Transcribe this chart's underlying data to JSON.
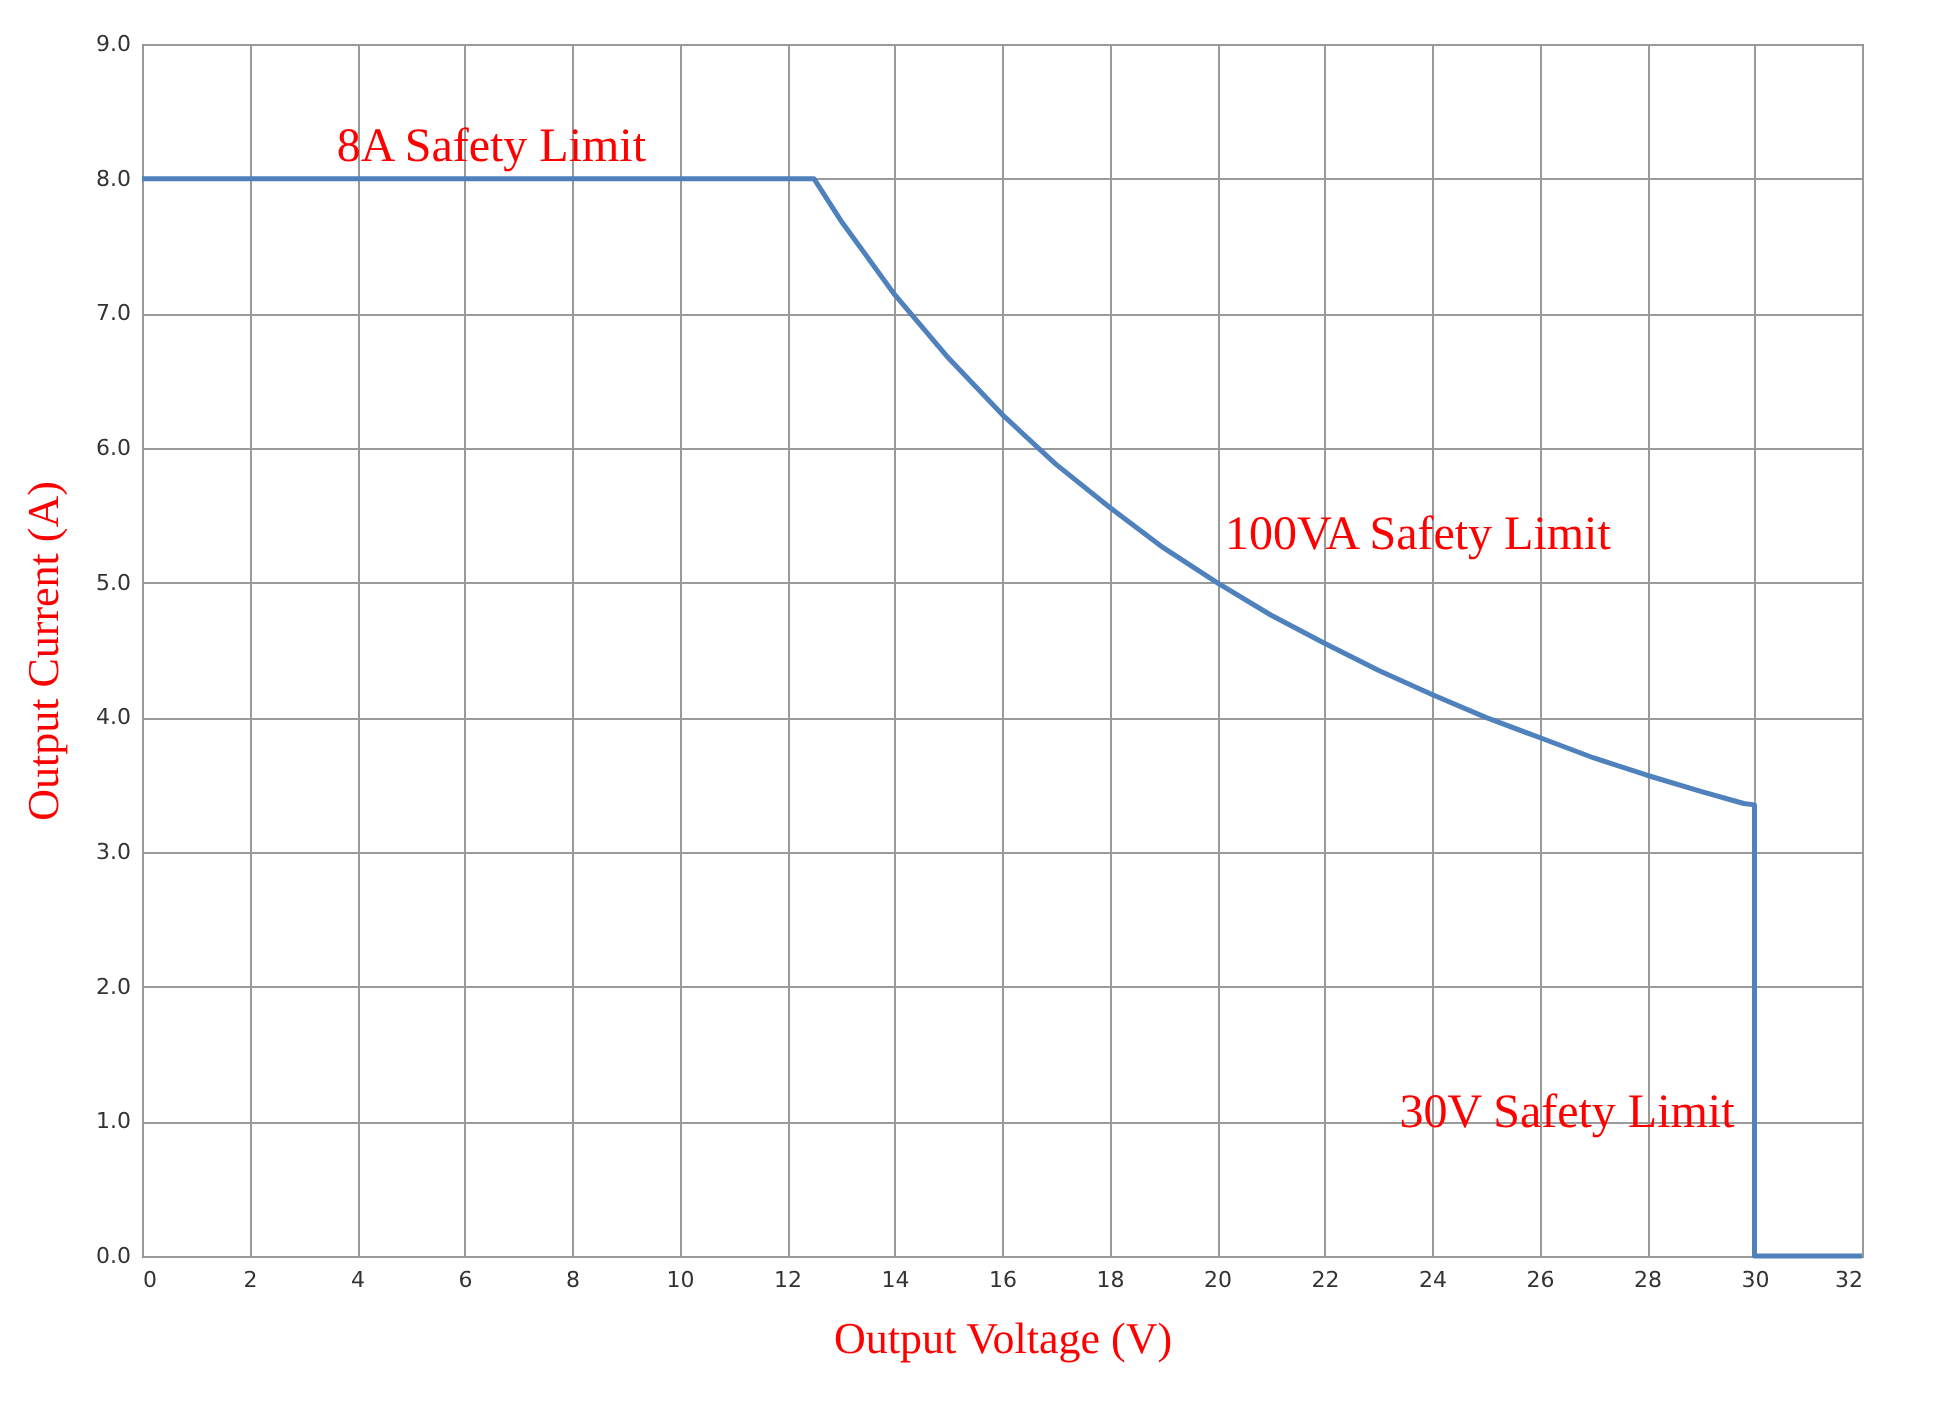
{
  "chart_data": {
    "type": "line",
    "xlabel": "Output Voltage (V)",
    "ylabel": "Output Current (A)",
    "series": [
      {
        "color": "#4f81bd",
        "x": [
          0,
          12.5,
          13,
          14,
          15,
          16,
          17,
          18,
          19,
          20,
          21,
          22,
          23,
          24,
          25,
          26,
          27,
          28,
          29,
          29.8,
          30,
          30,
          30.2,
          32
        ],
        "values": [
          8.0,
          8.0,
          7.69,
          7.14,
          6.67,
          6.25,
          5.88,
          5.56,
          5.26,
          5.0,
          4.76,
          4.55,
          4.35,
          4.17,
          4.0,
          3.85,
          3.7,
          3.57,
          3.45,
          3.36,
          3.35,
          0.0,
          0.0,
          0.0
        ]
      }
    ],
    "xlim": [
      0,
      32
    ],
    "xticks": [
      0,
      2,
      4,
      6,
      8,
      10,
      12,
      14,
      16,
      18,
      20,
      22,
      24,
      26,
      28,
      30,
      32
    ],
    "ylim": [
      0,
      9
    ],
    "yticks": [
      {
        "value": 0,
        "label": "0.0"
      },
      {
        "value": 1,
        "label": "1.0"
      },
      {
        "value": 2,
        "label": "2.0"
      },
      {
        "value": 3,
        "label": "3.0"
      },
      {
        "value": 4,
        "label": "4.0"
      },
      {
        "value": 5,
        "label": "5.0"
      },
      {
        "value": 6,
        "label": "6.0"
      },
      {
        "value": 7,
        "label": "7.0"
      },
      {
        "value": 8,
        "label": "8.0"
      },
      {
        "value": 9,
        "label": "9.0"
      }
    ],
    "annotations": [
      {
        "text": "8A Safety Limit",
        "x": 6.5,
        "y": 8.0
      },
      {
        "text": "100VA Safety Limit",
        "x": 20,
        "y": 5.0
      },
      {
        "text": "30V Safety Limit",
        "x": 30,
        "y": 1.0
      }
    ],
    "grid": true,
    "marker": "none",
    "line_style": "solid"
  }
}
